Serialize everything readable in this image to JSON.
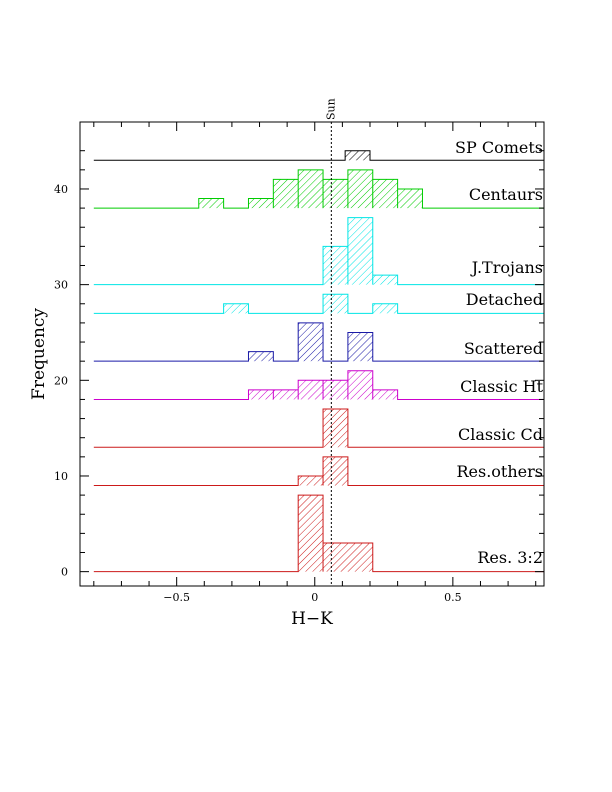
{
  "chart_data": {
    "type": "histogram",
    "xlabel": "H−K",
    "ylabel": "Frequency",
    "xlim": [
      -0.85,
      0.83
    ],
    "ylim": [
      -1.5,
      47
    ],
    "x_ticks": [
      -0.5,
      0,
      0.5
    ],
    "x_tick_labels": [
      "−0.5",
      "0",
      "0.5"
    ],
    "y_ticks": [
      0,
      10,
      20,
      30,
      40
    ],
    "y_tick_labels": [
      "0",
      "10",
      "20",
      "30",
      "40"
    ],
    "grid": false,
    "reference_line": {
      "label": "Sun",
      "x": 0.06,
      "style": "dotted"
    },
    "baseline_range": [
      -0.8,
      0.83
    ],
    "series": [
      {
        "name": "SP Comets",
        "color": "#000000",
        "offset": 43,
        "bins": [
          {
            "x0": 0.11,
            "x1": 0.2,
            "count": 1
          }
        ]
      },
      {
        "name": "Centaurs",
        "color": "#00cc00",
        "offset": 38,
        "bins": [
          {
            "x0": -0.42,
            "x1": -0.33,
            "count": 1
          },
          {
            "x0": -0.24,
            "x1": -0.15,
            "count": 1
          },
          {
            "x0": -0.15,
            "x1": -0.06,
            "count": 3
          },
          {
            "x0": -0.06,
            "x1": 0.03,
            "count": 4
          },
          {
            "x0": 0.03,
            "x1": 0.12,
            "count": 3
          },
          {
            "x0": 0.12,
            "x1": 0.21,
            "count": 4
          },
          {
            "x0": 0.21,
            "x1": 0.3,
            "count": 3
          },
          {
            "x0": 0.3,
            "x1": 0.39,
            "count": 2
          }
        ]
      },
      {
        "name": "J.Trojans",
        "color": "#00e5e5",
        "offset": 30,
        "bins": [
          {
            "x0": 0.03,
            "x1": 0.12,
            "count": 4
          },
          {
            "x0": 0.12,
            "x1": 0.21,
            "count": 7
          },
          {
            "x0": 0.21,
            "x1": 0.3,
            "count": 1
          }
        ]
      },
      {
        "name": "Detached",
        "color": "#00e5e5",
        "offset": 27,
        "bins": [
          {
            "x0": -0.33,
            "x1": -0.24,
            "count": 1
          },
          {
            "x0": 0.03,
            "x1": 0.12,
            "count": 2
          },
          {
            "x0": 0.21,
            "x1": 0.3,
            "count": 1
          }
        ]
      },
      {
        "name": "Scattered",
        "color": "#1a1aa6",
        "offset": 22,
        "bins": [
          {
            "x0": -0.24,
            "x1": -0.15,
            "count": 1
          },
          {
            "x0": -0.06,
            "x1": 0.03,
            "count": 4
          },
          {
            "x0": 0.12,
            "x1": 0.21,
            "count": 3
          }
        ]
      },
      {
        "name": "Classic Ht",
        "color": "#cc00cc",
        "offset": 18,
        "bins": [
          {
            "x0": -0.24,
            "x1": -0.15,
            "count": 1
          },
          {
            "x0": -0.15,
            "x1": -0.06,
            "count": 1
          },
          {
            "x0": -0.06,
            "x1": 0.03,
            "count": 2
          },
          {
            "x0": 0.03,
            "x1": 0.12,
            "count": 2
          },
          {
            "x0": 0.12,
            "x1": 0.21,
            "count": 3
          },
          {
            "x0": 0.21,
            "x1": 0.3,
            "count": 1
          }
        ]
      },
      {
        "name": "Classic Cd",
        "color": "#cc1a1a",
        "offset": 13,
        "bins": [
          {
            "x0": 0.03,
            "x1": 0.12,
            "count": 4
          }
        ]
      },
      {
        "name": "Res.others",
        "color": "#cc1a1a",
        "offset": 9,
        "bins": [
          {
            "x0": -0.06,
            "x1": 0.03,
            "count": 1
          },
          {
            "x0": 0.03,
            "x1": 0.12,
            "count": 3
          }
        ]
      },
      {
        "name": "Res. 3:2",
        "color": "#cc1a1a",
        "offset": 0,
        "bins": [
          {
            "x0": -0.06,
            "x1": 0.03,
            "count": 8
          },
          {
            "x0": 0.03,
            "x1": 0.21,
            "count": 3
          }
        ]
      }
    ]
  }
}
